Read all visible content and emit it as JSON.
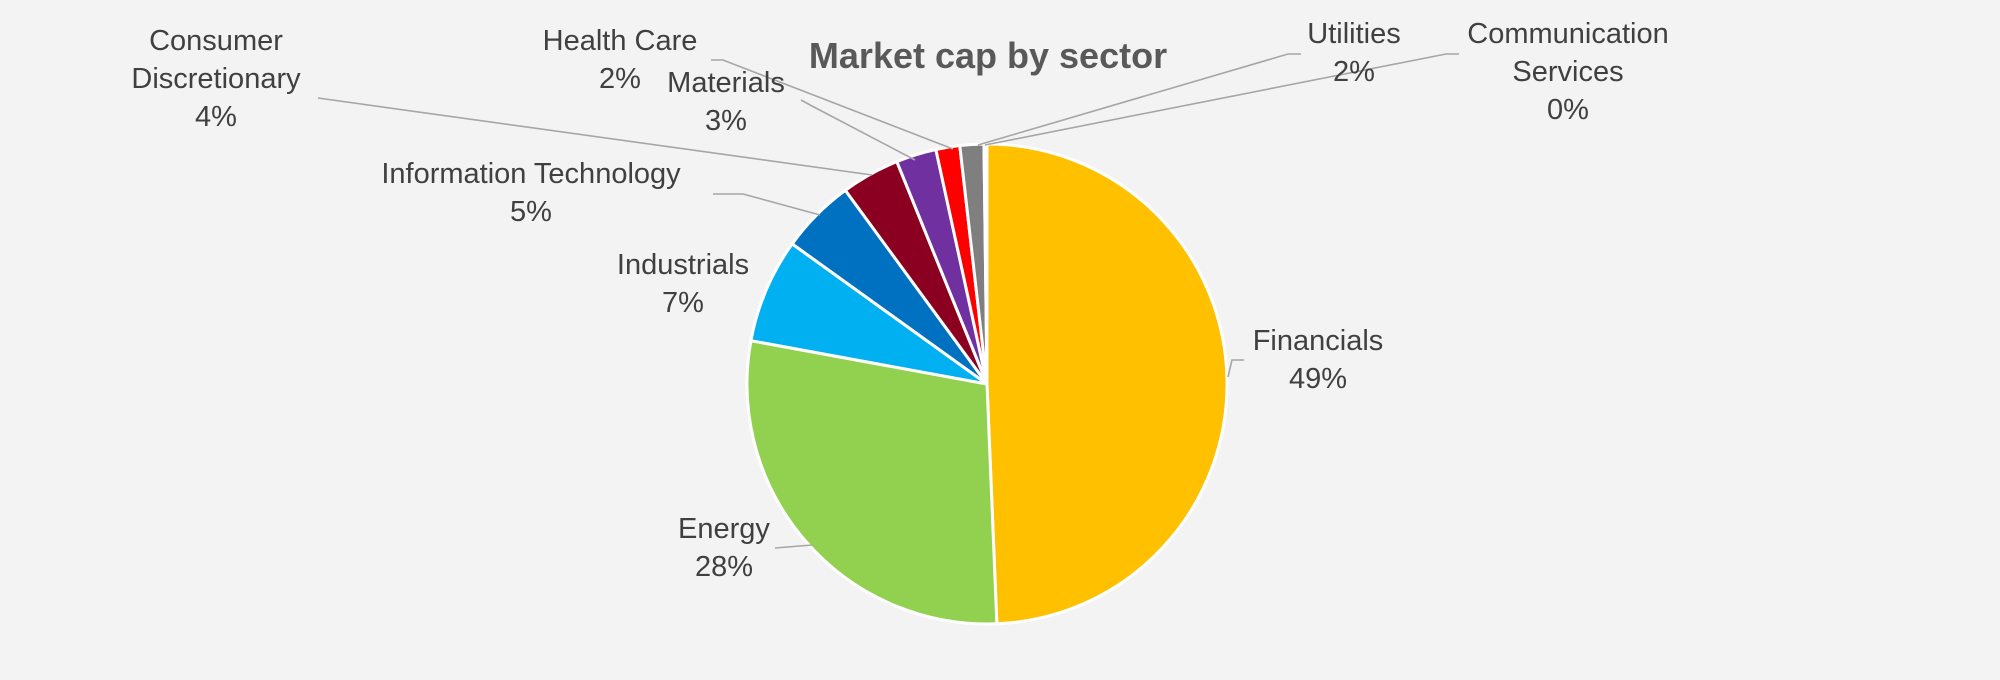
{
  "chart_data": {
    "type": "pie",
    "title": "Market cap by sector",
    "start": "12 o'clock",
    "direction": "clockwise",
    "slices": [
      {
        "name": "Financials",
        "name_lines": [
          "Financials"
        ],
        "value": 49.1,
        "label": "49%",
        "color": "#FFC000"
      },
      {
        "name": "Energy",
        "name_lines": [
          "Energy"
        ],
        "value": 28.4,
        "label": "28%",
        "color": "#92D050"
      },
      {
        "name": "Industrials",
        "name_lines": [
          "Industrials"
        ],
        "value": 7.0,
        "label": "7%",
        "color": "#00B0F0"
      },
      {
        "name": "Information Technology",
        "name_lines": [
          "Information Technology"
        ],
        "value": 5.0,
        "label": "5%",
        "color": "#0070C0"
      },
      {
        "name": "Consumer Discretionary",
        "name_lines": [
          "Consumer",
          "Discretionary"
        ],
        "value": 3.9,
        "label": "4%",
        "color": "#8B0021"
      },
      {
        "name": "Materials",
        "name_lines": [
          "Materials"
        ],
        "value": 2.7,
        "label": "3%",
        "color": "#7030A0"
      },
      {
        "name": "Health Care",
        "name_lines": [
          "Health Care"
        ],
        "value": 1.6,
        "label": "2%",
        "color": "#FF0000"
      },
      {
        "name": "Utilities",
        "name_lines": [
          "Utilities"
        ],
        "value": 1.6,
        "label": "2%",
        "color": "#7F7F7F"
      },
      {
        "name": "Communication Services",
        "name_lines": [
          "Communication",
          "Services"
        ],
        "value": 0.2,
        "label": "0%",
        "color": "#C00000"
      }
    ]
  }
}
